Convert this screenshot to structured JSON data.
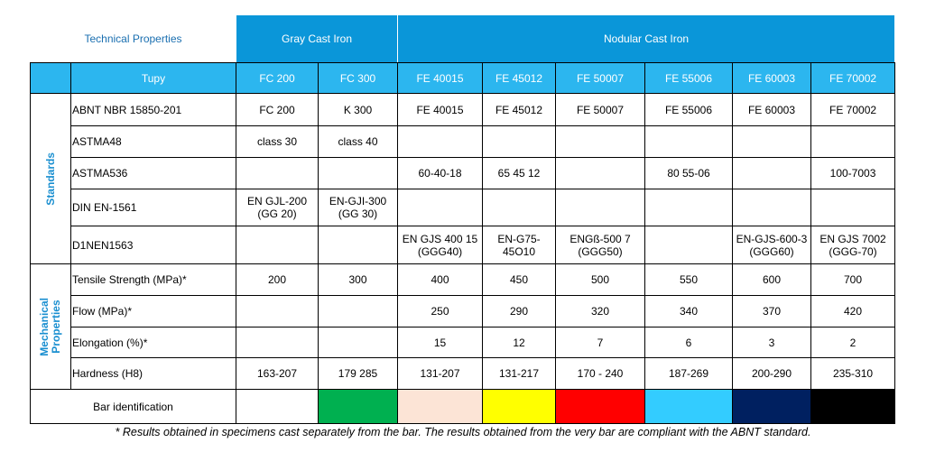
{
  "header": {
    "title": "Technical Properties",
    "groups": [
      "Gray Cast Iron",
      "Nodular Cast Iron"
    ]
  },
  "table": {
    "columns": [
      "Tupy",
      "FC 200",
      "FC 300",
      "FE 40015",
      "FE 45012",
      "FE 50007",
      "FE 55006",
      "FE 60003",
      "FE 70002"
    ],
    "sections": [
      {
        "label": "Standards",
        "rows": [
          [
            "ABNT NBR 15850-201",
            "FC 200",
            "K 300",
            "FE 40015",
            "FE 45012",
            "FE 50007",
            "FE 55006",
            "FE 60003",
            "FE 70002"
          ],
          [
            "ASTMA48",
            "class 30",
            "class 40",
            null,
            null,
            null,
            null,
            null,
            null
          ],
          [
            "ASTMA536",
            null,
            null,
            "60-40-18",
            "65 45 12",
            null,
            "80 55-06",
            null,
            "100-7003"
          ],
          [
            "DIN EN-1561",
            "EN GJL-200\n(GG 20)",
            "EN-GJI-300\n(GG 30)",
            null,
            null,
            null,
            null,
            null,
            null
          ],
          [
            "D1NEN1563",
            null,
            null,
            "EN GJS 400 15\n(GGG40)",
            "EN-G75-\n45O10",
            "ENGß-500 7\n(GGG50)",
            null,
            "EN-GJS-600-3\n(GGG60)",
            "EN GJS 7002\n(GGG-70)"
          ]
        ]
      },
      {
        "label": "Mechanical\nProperties",
        "rows": [
          [
            "Tensile Strength (MPa)*",
            200,
            300,
            400,
            450,
            500,
            550,
            600,
            700
          ],
          [
            "Flow (MPa)*",
            null,
            null,
            250,
            290,
            320,
            340,
            370,
            420
          ],
          [
            "Elongation (%)*",
            null,
            null,
            15,
            12,
            7,
            6,
            3,
            2
          ],
          [
            "Hardness (H8)",
            "163-207",
            "179 285",
            "131-207",
            "131-217",
            "170 - 240",
            "187-269",
            "200-290",
            "235-310"
          ]
        ]
      }
    ],
    "bar_identification": {
      "label": "Bar identification",
      "colors": [
        "#ffffff",
        "#00b050",
        "#fce4d6",
        "#ffff00",
        "#ff0000",
        "#33ccff",
        "#002060",
        "#000000"
      ]
    }
  },
  "footnote": "* Results obtained in specimens cast separately from the bar. The results obtained from the very bar are compliant with the ABNT standard."
}
